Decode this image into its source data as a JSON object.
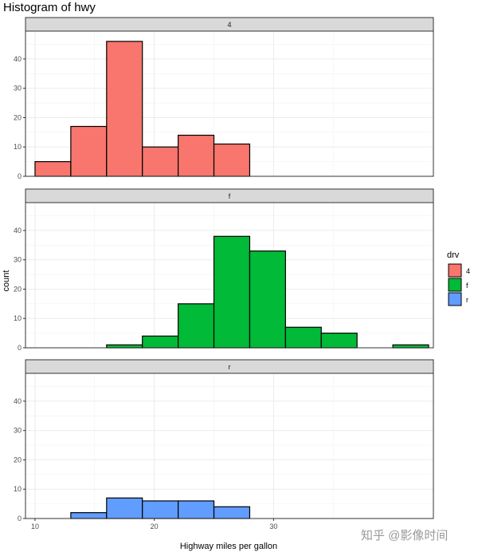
{
  "chart_data": {
    "type": "bar",
    "title": "Histogram of hwy",
    "xlabel": "Highway miles per gallon",
    "ylabel": "count",
    "x_ticks": [
      10,
      20,
      30
    ],
    "y_ticks": [
      0,
      10,
      20,
      30,
      40
    ],
    "xlim": [
      9.2,
      43.4
    ],
    "ylim": [
      0,
      49.5
    ],
    "bin_edges": [
      10,
      13,
      16,
      19,
      22,
      25,
      28,
      31,
      34,
      37,
      40,
      43
    ],
    "grid": true,
    "legend": {
      "title": "drv",
      "placement": "right",
      "entries": [
        {
          "label": "4",
          "color": "#F8766D"
        },
        {
          "label": "f",
          "color": "#00BA38"
        },
        {
          "label": "r",
          "color": "#619CFF"
        }
      ]
    },
    "facets": [
      {
        "label": "4",
        "color": "#F8766D",
        "values": [
          5,
          17,
          46,
          10,
          14,
          11,
          0,
          0,
          0,
          0,
          0
        ]
      },
      {
        "label": "f",
        "color": "#00BA38",
        "values": [
          0,
          0,
          1,
          4,
          15,
          38,
          33,
          7,
          5,
          0,
          1
        ]
      },
      {
        "label": "r",
        "color": "#619CFF",
        "values": [
          0,
          2,
          7,
          6,
          6,
          4,
          0,
          0,
          0,
          0,
          0
        ]
      }
    ]
  },
  "watermark": "知乎 @影像时间"
}
